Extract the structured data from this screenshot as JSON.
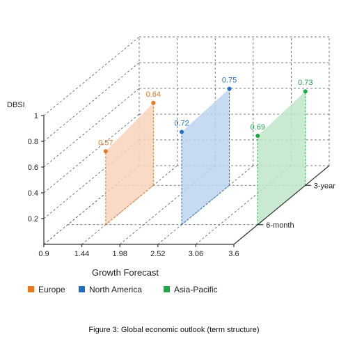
{
  "caption": "Figure 3: Global economic outlook (term structure)",
  "chart_data": {
    "type": "area",
    "projection": "3d",
    "xlabel": "Growth Forecast",
    "ylabel": "DBSI",
    "x_ticks": [
      "0.9",
      "1.44",
      "1.98",
      "2.52",
      "3.06",
      "3.6"
    ],
    "xlim": [
      0.9,
      3.6
    ],
    "y_ticks": [
      "0.2",
      "0.4",
      "0.6",
      "0.8",
      "1"
    ],
    "ylim": [
      0,
      1
    ],
    "depth_categories": [
      "6-month",
      "3-year"
    ],
    "grid": true,
    "legend_position": "bottom",
    "series": [
      {
        "name": "Europe",
        "color": "#e87722",
        "fill": "#f8d4bc",
        "x": 1.44,
        "values": [
          0.57,
          0.64
        ]
      },
      {
        "name": "North America",
        "color": "#1f6fc4",
        "fill": "#bcd3ee",
        "x": 2.52,
        "values": [
          0.72,
          0.75
        ]
      },
      {
        "name": "Asia-Pacific",
        "color": "#1fa84a",
        "fill": "#bfe6c8",
        "x": 3.6,
        "values": [
          0.69,
          0.73
        ]
      }
    ]
  }
}
